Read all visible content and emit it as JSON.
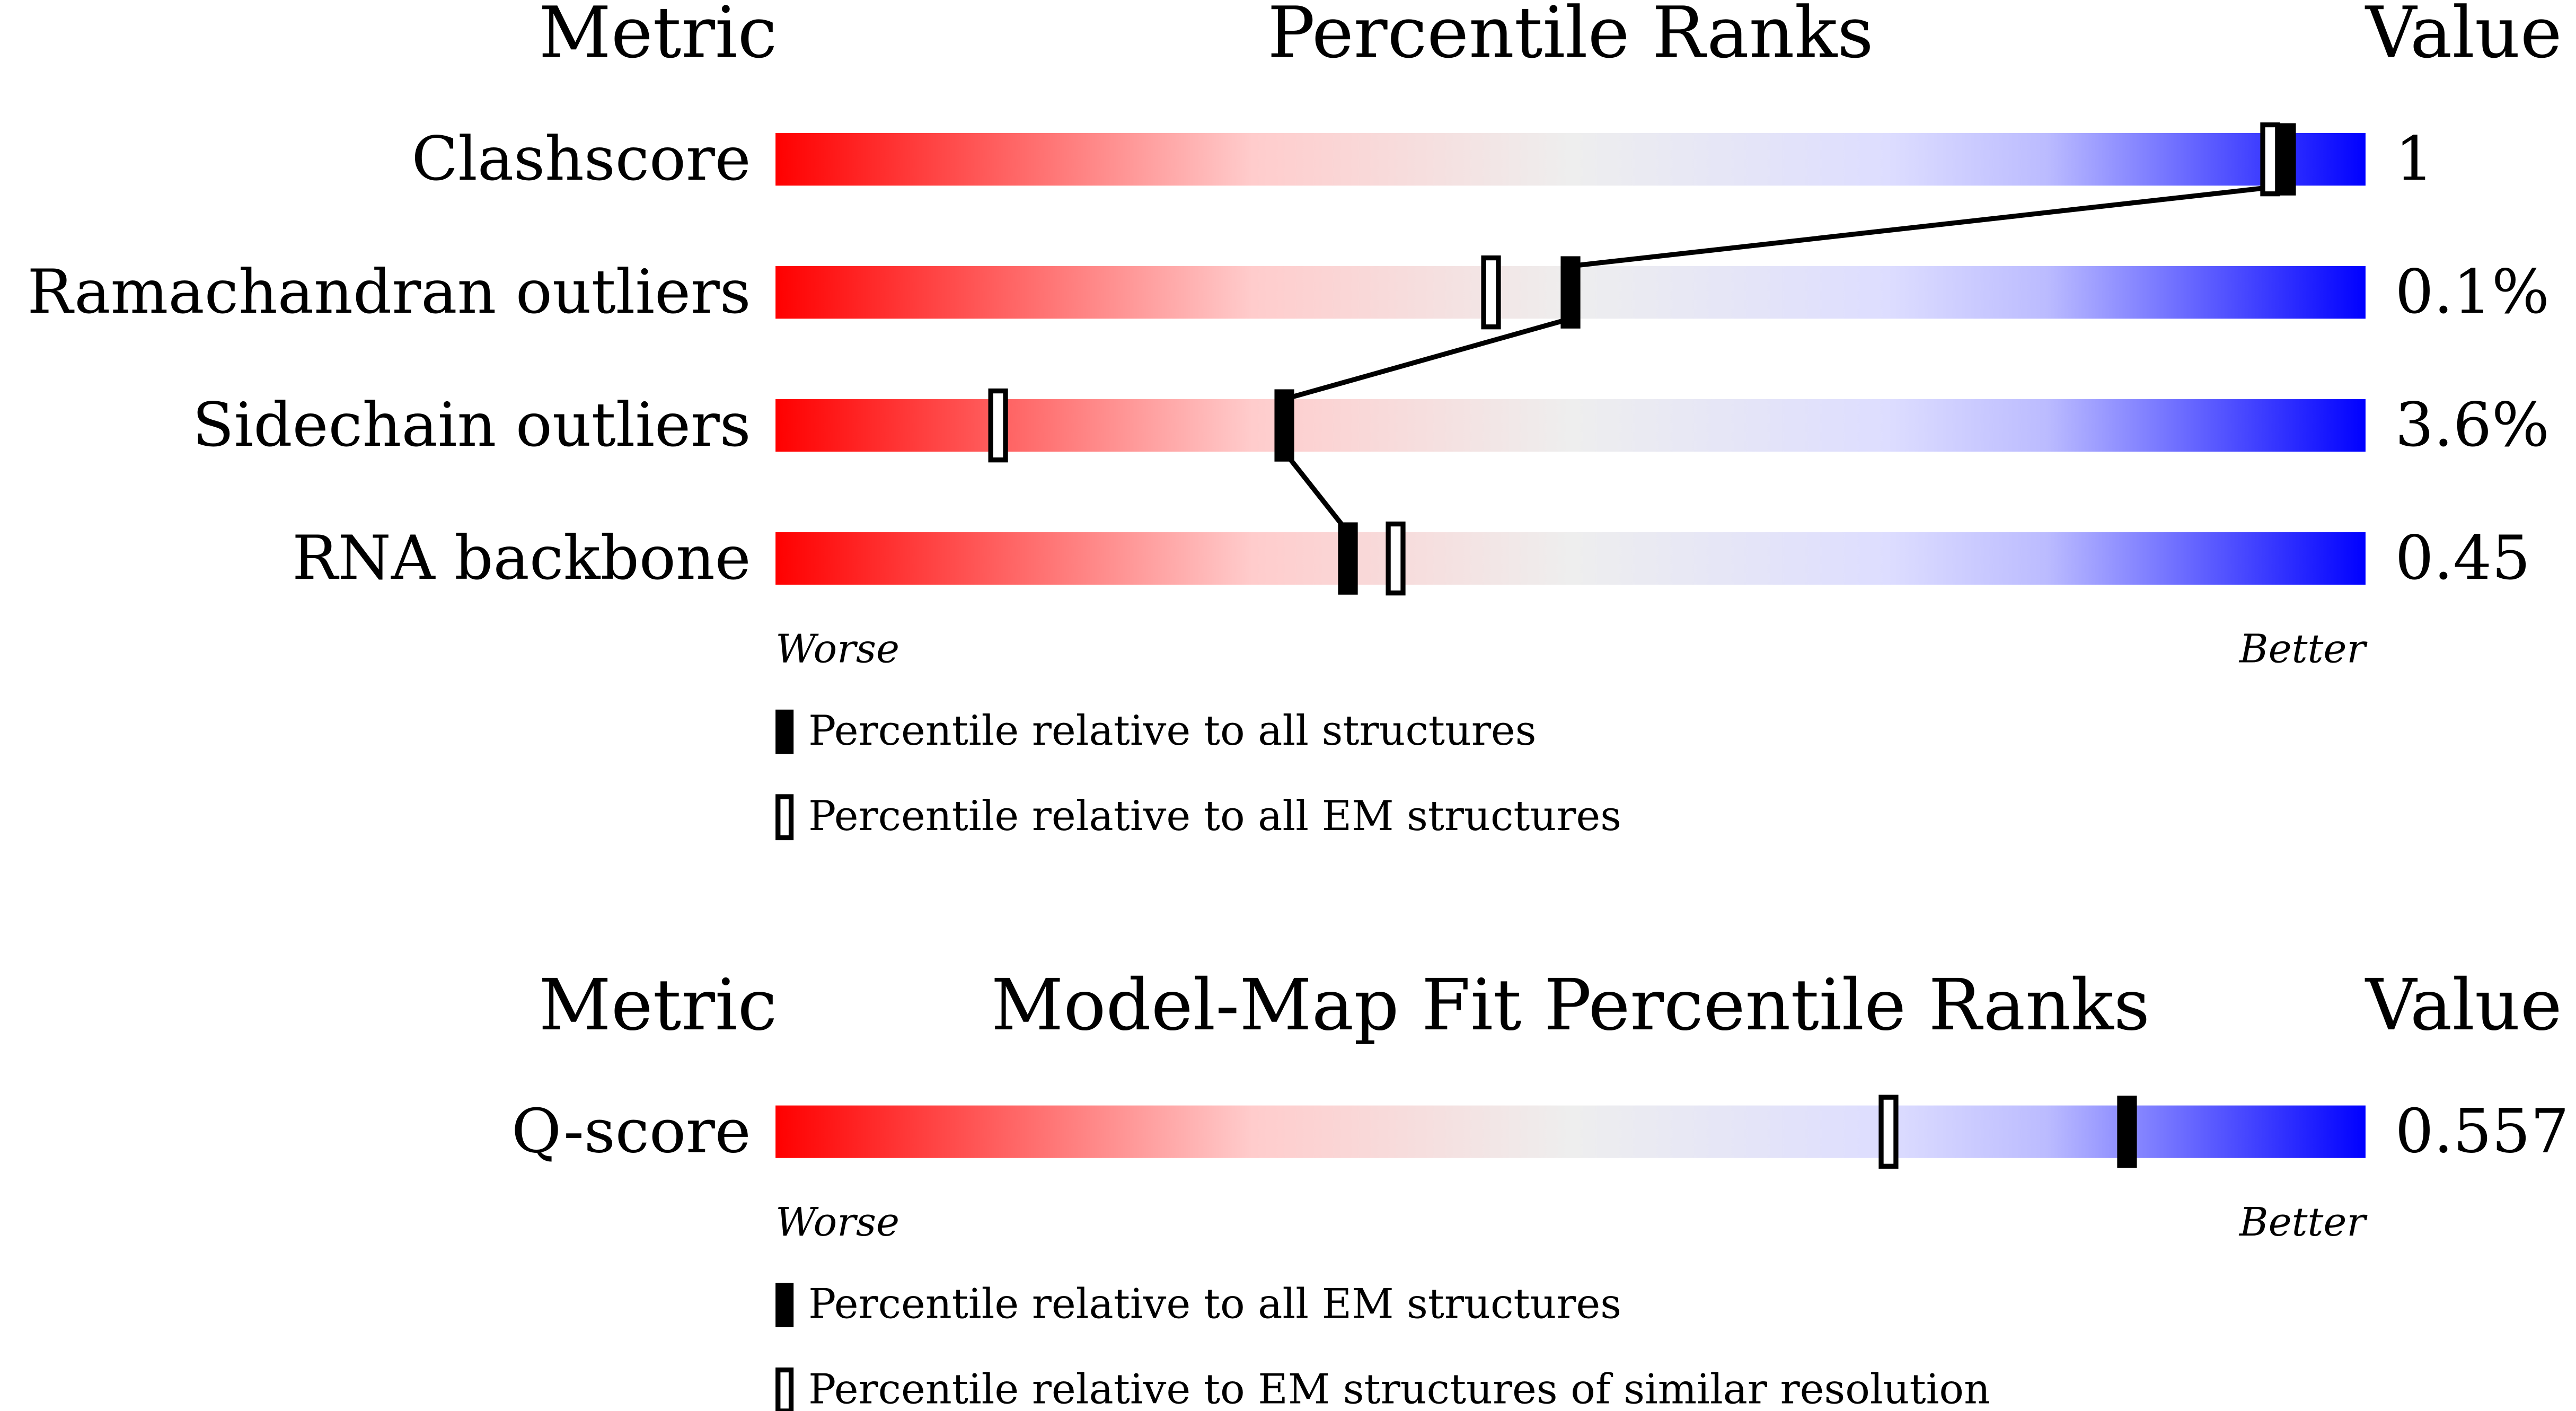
{
  "chart_data": [
    {
      "type": "slider",
      "metric_heading": "Metric",
      "title": "Percentile Ranks",
      "value_heading": "Value",
      "categories": [
        "Clashscore",
        "Ramachandran outliers",
        "Sidechain outliers",
        "RNA backbone"
      ],
      "values": [
        1,
        0.1,
        3.6,
        0.45
      ],
      "value_labels": [
        "1",
        "0.1%",
        "3.6%",
        "0.45"
      ],
      "series": [
        {
          "name": "Percentile relative to all structures",
          "style": "filled",
          "color": "#000000",
          "values": [
            95,
            50,
            32,
            36
          ]
        },
        {
          "name": "Percentile relative to all EM structures",
          "style": "outline",
          "color": "#000000",
          "values": [
            94,
            45,
            14,
            39
          ]
        }
      ],
      "xlim": [
        0,
        100
      ],
      "worse_label": "Worse",
      "better_label": "Better",
      "connect": true
    },
    {
      "type": "slider",
      "metric_heading": "Metric",
      "title": "Model-Map Fit Percentile Ranks",
      "value_heading": "Value",
      "categories": [
        "Q-score"
      ],
      "values": [
        0.557
      ],
      "value_labels": [
        "0.557"
      ],
      "series": [
        {
          "name": "Percentile relative to all EM structures",
          "style": "filled",
          "color": "#000000",
          "values": [
            85
          ]
        },
        {
          "name": "Percentile relative to EM structures of similar resolution",
          "style": "outline",
          "color": "#000000",
          "values": [
            70
          ]
        }
      ],
      "xlim": [
        0,
        100
      ],
      "worse_label": "Worse",
      "better_label": "Better",
      "connect": false
    }
  ]
}
